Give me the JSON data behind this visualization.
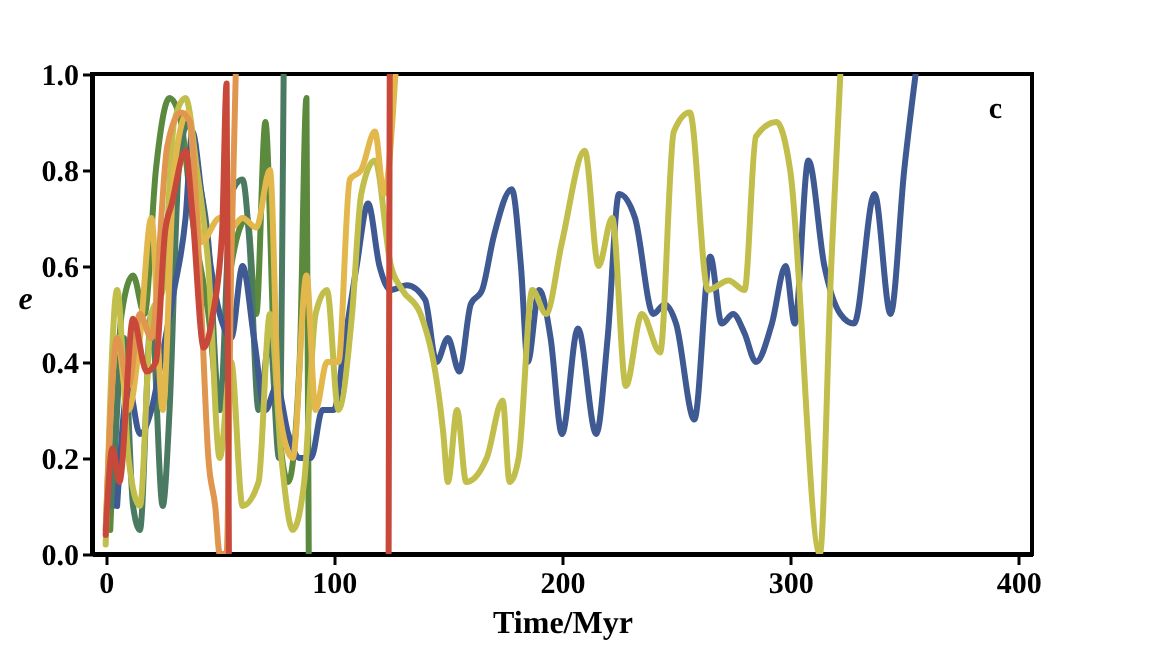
{
  "chart_data": {
    "type": "line",
    "xlabel": "Time/Myr",
    "ylabel": "e",
    "annotations": [
      "c"
    ],
    "xlim": [
      -6,
      406
    ],
    "ylim": [
      0,
      1
    ],
    "xticks": [
      0,
      100,
      200,
      300,
      400
    ],
    "yticks": [
      {
        "value": 0,
        "label": "0.0"
      },
      {
        "value": 0.2,
        "label": "0.2"
      },
      {
        "value": 0.4,
        "label": "0.4"
      },
      {
        "value": 0.6,
        "label": "0.6"
      },
      {
        "value": 0.8,
        "label": "0.8"
      },
      {
        "value": 1,
        "label": "1.0"
      }
    ],
    "grid": false,
    "line_style": "solid",
    "marker": "none",
    "series": [
      {
        "color": "#5b8a3e",
        "x": [
          2,
          7,
          12,
          17,
          22,
          28,
          33,
          38,
          45,
          50,
          55,
          62,
          66,
          70,
          74,
          80,
          85,
          88,
          89
        ],
        "values": [
          0.05,
          0.5,
          0.58,
          0.5,
          0.8,
          0.95,
          0.9,
          0.7,
          0.5,
          0.3,
          0.6,
          0.7,
          0.5,
          0.9,
          0.4,
          0.15,
          0.4,
          0.95,
          0.0
        ]
      },
      {
        "color": "#4a7a62",
        "x": [
          3,
          8,
          12,
          15,
          20,
          25,
          28,
          32,
          36,
          40,
          45,
          50,
          55,
          60,
          63,
          67,
          72,
          76,
          78
        ],
        "values": [
          0.1,
          0.45,
          0.1,
          0.05,
          0.5,
          0.1,
          0.3,
          0.8,
          0.9,
          0.8,
          0.65,
          0.3,
          0.75,
          0.78,
          0.65,
          0.3,
          0.45,
          0.2,
          1.0
        ]
      },
      {
        "color": "#3f5a93",
        "x": [
          5,
          10,
          15,
          20,
          25,
          30,
          35,
          38,
          42,
          46,
          50,
          55,
          60,
          65,
          70,
          75,
          80,
          85,
          90,
          95,
          100,
          105,
          110,
          115,
          120,
          125,
          132,
          140,
          145,
          150,
          155,
          160,
          165,
          170,
          178,
          182,
          185,
          190,
          195,
          200,
          207,
          215,
          220,
          225,
          232,
          240,
          245,
          250,
          258,
          265,
          270,
          275,
          280,
          285,
          292,
          298,
          302,
          308,
          315,
          322,
          328,
          337,
          344,
          350,
          355
        ],
        "values": [
          0.1,
          0.35,
          0.25,
          0.3,
          0.42,
          0.55,
          0.7,
          0.88,
          0.75,
          0.6,
          0.5,
          0.45,
          0.6,
          0.45,
          0.3,
          0.35,
          0.25,
          0.2,
          0.2,
          0.3,
          0.3,
          0.45,
          0.6,
          0.73,
          0.6,
          0.55,
          0.56,
          0.53,
          0.4,
          0.45,
          0.38,
          0.52,
          0.55,
          0.66,
          0.76,
          0.6,
          0.4,
          0.55,
          0.45,
          0.25,
          0.47,
          0.25,
          0.45,
          0.75,
          0.7,
          0.5,
          0.52,
          0.48,
          0.28,
          0.62,
          0.48,
          0.5,
          0.46,
          0.4,
          0.48,
          0.6,
          0.48,
          0.82,
          0.6,
          0.5,
          0.48,
          0.75,
          0.5,
          0.8,
          1.0
        ]
      },
      {
        "color": "#c2be4c",
        "x": [
          0,
          5,
          10,
          15,
          20,
          25,
          30,
          35,
          40,
          45,
          50,
          55,
          60,
          67,
          72,
          77,
          82,
          87,
          92,
          97,
          102,
          108,
          112,
          118,
          125,
          130,
          138,
          148,
          150,
          154,
          158,
          167,
          174,
          177,
          181,
          187,
          193,
          200,
          210,
          216,
          222,
          228,
          235,
          243,
          249,
          256,
          264,
          273,
          280,
          285,
          294,
          300,
          313,
          318,
          322
        ],
        "values": [
          0.02,
          0.55,
          0.2,
          0.1,
          0.5,
          0.55,
          0.9,
          0.95,
          0.8,
          0.6,
          0.2,
          0.4,
          0.1,
          0.15,
          0.5,
          0.2,
          0.05,
          0.15,
          0.5,
          0.55,
          0.3,
          0.5,
          0.75,
          0.82,
          0.6,
          0.55,
          0.5,
          0.25,
          0.15,
          0.3,
          0.15,
          0.2,
          0.32,
          0.15,
          0.2,
          0.55,
          0.5,
          0.65,
          0.84,
          0.6,
          0.7,
          0.35,
          0.5,
          0.42,
          0.88,
          0.92,
          0.55,
          0.57,
          0.55,
          0.87,
          0.9,
          0.8,
          0.0,
          0.6,
          1.0
        ]
      },
      {
        "color": "#e2b84c",
        "x": [
          0,
          5,
          10,
          15,
          20,
          25,
          30,
          36,
          42,
          50,
          55,
          60,
          66,
          72,
          76,
          82,
          88,
          92,
          97,
          102,
          107,
          112,
          118,
          122,
          127
        ],
        "values": [
          0.05,
          0.45,
          0.3,
          0.45,
          0.7,
          0.3,
          0.8,
          0.92,
          0.65,
          0.7,
          0.68,
          0.7,
          0.68,
          0.8,
          0.3,
          0.2,
          0.58,
          0.3,
          0.4,
          0.4,
          0.78,
          0.8,
          0.88,
          0.75,
          1.0
        ]
      },
      {
        "color": "#e0964f",
        "x": [
          0,
          5,
          10,
          15,
          20,
          27,
          33,
          37,
          42,
          45,
          48,
          50,
          53,
          55,
          57
        ],
        "values": [
          0.05,
          0.45,
          0.35,
          0.5,
          0.45,
          0.85,
          0.92,
          0.9,
          0.5,
          0.2,
          0.1,
          0.0,
          0.0,
          0.6,
          1.0
        ]
      },
      {
        "color": "#c8483a",
        "x": [
          0,
          3,
          6,
          12,
          18,
          22,
          26,
          29,
          35,
          38,
          43,
          47,
          51,
          53,
          54
        ],
        "values": [
          0.04,
          0.22,
          0.15,
          0.49,
          0.38,
          0.4,
          0.67,
          0.73,
          0.84,
          0.71,
          0.43,
          0.5,
          0.67,
          0.98,
          0.0
        ]
      },
      {
        "color": "#c8483a",
        "x": [
          124,
          124.5
        ],
        "values": [
          0.0,
          1.0
        ]
      }
    ]
  }
}
